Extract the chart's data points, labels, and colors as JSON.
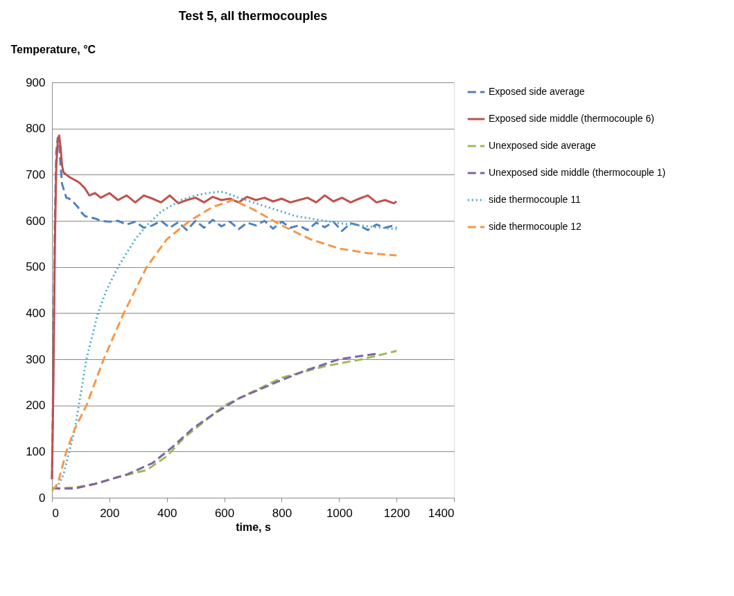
{
  "chart_data": {
    "type": "line",
    "title": "Test 5, all thermocouples",
    "xlabel": "time, s",
    "ylabel": "Temperature, °C",
    "xlim": [
      0,
      1400
    ],
    "xticks": [
      0,
      200,
      400,
      600,
      800,
      1000,
      1200,
      1400
    ],
    "ylim": [
      0,
      900
    ],
    "yticks": [
      0,
      100,
      200,
      300,
      400,
      500,
      600,
      700,
      800,
      900
    ],
    "grid": "y",
    "legend": "right",
    "marker": "none",
    "series": [
      {
        "name": "Exposed side average",
        "color": "#4f81bd",
        "line_style": "dashed",
        "x": [
          0,
          5,
          10,
          15,
          20,
          25,
          30,
          35,
          40,
          50,
          60,
          75,
          90,
          100,
          115,
          130,
          150,
          170,
          200,
          230,
          260,
          290,
          320,
          350,
          380,
          410,
          440,
          470,
          500,
          530,
          560,
          590,
          620,
          650,
          680,
          710,
          740,
          770,
          800,
          830,
          860,
          890,
          920,
          950,
          980,
          1010,
          1040,
          1070,
          1100,
          1130,
          1160,
          1190,
          1200
        ],
        "values": [
          40,
          300,
          600,
          750,
          780,
          770,
          720,
          680,
          670,
          650,
          648,
          640,
          630,
          620,
          610,
          608,
          605,
          600,
          598,
          600,
          592,
          598,
          585,
          590,
          600,
          585,
          597,
          580,
          600,
          585,
          602,
          588,
          598,
          582,
          596,
          590,
          600,
          583,
          598,
          585,
          590,
          580,
          596,
          586,
          598,
          578,
          595,
          590,
          580,
          592,
          585,
          590,
          585
        ]
      },
      {
        "name": "Exposed side middle (thermocouple 6)",
        "color": "#c0504d",
        "line_style": "solid",
        "x": [
          0,
          5,
          10,
          15,
          20,
          25,
          30,
          35,
          40,
          50,
          60,
          75,
          90,
          100,
          115,
          130,
          150,
          170,
          200,
          230,
          260,
          290,
          320,
          350,
          380,
          410,
          440,
          470,
          500,
          530,
          560,
          590,
          620,
          650,
          680,
          710,
          740,
          770,
          800,
          830,
          860,
          890,
          920,
          950,
          980,
          1010,
          1040,
          1070,
          1100,
          1130,
          1160,
          1190,
          1200
        ],
        "values": [
          40,
          250,
          550,
          720,
          770,
          785,
          760,
          720,
          705,
          700,
          695,
          690,
          685,
          680,
          670,
          655,
          660,
          650,
          660,
          645,
          655,
          640,
          655,
          648,
          640,
          655,
          638,
          645,
          650,
          640,
          652,
          645,
          648,
          640,
          652,
          645,
          650,
          642,
          648,
          640,
          645,
          650,
          640,
          655,
          642,
          650,
          640,
          648,
          655,
          640,
          645,
          638,
          642
        ]
      },
      {
        "name": "Unexposed side average",
        "color": "#9bbb59",
        "line_style": "dashed",
        "x": [
          0,
          80,
          150,
          230,
          330,
          400,
          460,
          520,
          600,
          700,
          800,
          950,
          1080,
          1200
        ],
        "values": [
          20,
          22,
          30,
          45,
          60,
          90,
          130,
          160,
          200,
          230,
          260,
          285,
          300,
          318
        ]
      },
      {
        "name": "Unexposed side middle (thermocouple 1)",
        "color": "#8064a2",
        "line_style": "dashed",
        "x": [
          0,
          80,
          150,
          260,
          350,
          420,
          490,
          560,
          650,
          780,
          880,
          1000,
          1130
        ],
        "values": [
          20,
          20,
          30,
          50,
          75,
          110,
          150,
          180,
          215,
          250,
          275,
          300,
          312
        ]
      },
      {
        "name": "side thermocouple 11",
        "color": "#4bacc6",
        "line_style": "dotted",
        "x": [
          0,
          20,
          40,
          60,
          80,
          100,
          120,
          140,
          160,
          190,
          230,
          260,
          290,
          330,
          380,
          450,
          500,
          540,
          580,
          600,
          650,
          700,
          750,
          850,
          1000,
          1100,
          1200
        ],
        "values": [
          20,
          25,
          50,
          100,
          150,
          225,
          300,
          350,
          400,
          450,
          500,
          530,
          560,
          590,
          620,
          645,
          655,
          660,
          663,
          662,
          650,
          640,
          630,
          610,
          595,
          588,
          582
        ]
      },
      {
        "name": "side thermocouple 12",
        "color": "#f79646",
        "line_style": "dashed",
        "x": [
          0,
          20,
          50,
          80,
          120,
          150,
          180,
          215,
          250,
          290,
          330,
          400,
          480,
          560,
          630,
          700,
          800,
          900,
          1000,
          1100,
          1200
        ],
        "values": [
          15,
          30,
          100,
          150,
          200,
          250,
          300,
          350,
          400,
          450,
          500,
          560,
          600,
          630,
          645,
          625,
          590,
          560,
          540,
          530,
          525
        ]
      }
    ]
  }
}
